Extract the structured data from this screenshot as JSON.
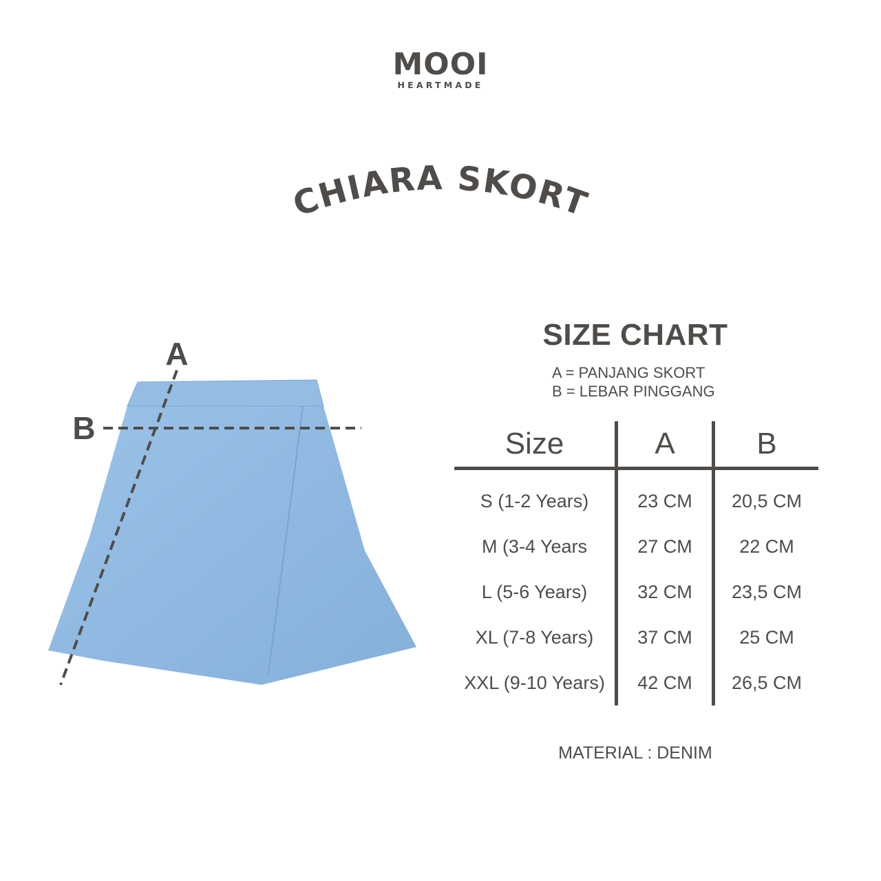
{
  "brand": {
    "name": "MOOI",
    "tagline": "HEARTMADE"
  },
  "product_title": "CHIARA SKORT",
  "size_chart": {
    "title": "SIZE CHART",
    "legend": [
      "A = PANJANG SKORT",
      "B = LEBAR PINGGANG"
    ],
    "headers": [
      "Size",
      "A",
      "B"
    ],
    "rows": [
      [
        "S (1-2 Years)",
        "23 CM",
        "20,5 CM"
      ],
      [
        "M (3-4 Years",
        "27 CM",
        "22 CM"
      ],
      [
        "L (5-6 Years)",
        "32 CM",
        "23,5 CM"
      ],
      [
        "XL (7-8 Years)",
        "37 CM",
        "25 CM"
      ],
      [
        "XXL (9-10 Years)",
        "42 CM",
        "26,5 CM"
      ]
    ]
  },
  "diagram": {
    "label_a": "A",
    "label_b": "B"
  },
  "material": "MATERIAL : DENIM",
  "colors": {
    "text": "#4f4c49",
    "denim": "#8fb8e0",
    "background": "#ffffff"
  }
}
